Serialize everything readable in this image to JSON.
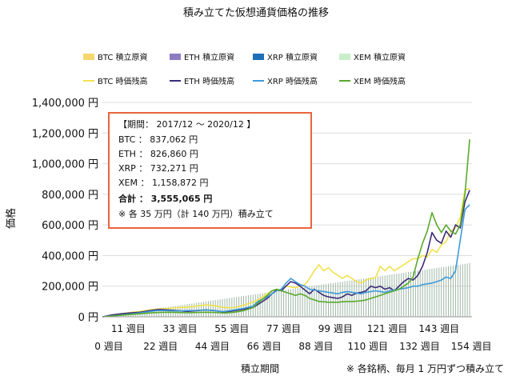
{
  "chart_data": {
    "type": "area",
    "title": "積み立てた仮想通貨価格の推移",
    "xlabel": "積立期間",
    "ylabel": "価格",
    "yunit": "円",
    "ylim": [
      0,
      1400000
    ],
    "yticks": [
      0,
      200000,
      400000,
      600000,
      800000,
      1000000,
      1200000,
      1400000
    ],
    "ytick_labels": [
      "0 円",
      "200,000 円",
      "400,000 円",
      "600,000 円",
      "800,000 円",
      "1,000,000 円",
      "1,200,000 円",
      "1,400,000 円"
    ],
    "xlim": [
      0,
      157
    ],
    "xtick_labels_row1": [
      {
        "x": 11,
        "label": "11 週目"
      },
      {
        "x": 33,
        "label": "33 週目"
      },
      {
        "x": 55,
        "label": "55 週目"
      },
      {
        "x": 77,
        "label": "77 週目"
      },
      {
        "x": 99,
        "label": "99 週目"
      },
      {
        "x": 121,
        "label": "121 週目"
      },
      {
        "x": 143,
        "label": "143 週目"
      }
    ],
    "xtick_labels_row2": [
      {
        "x": 0,
        "label": "0 週目"
      },
      {
        "x": 22,
        "label": "22 週目"
      },
      {
        "x": 44,
        "label": "44 週目"
      },
      {
        "x": 66,
        "label": "66 週目"
      },
      {
        "x": 88,
        "label": "88 週目"
      },
      {
        "x": 110,
        "label": "110 週目"
      },
      {
        "x": 132,
        "label": "132 週目"
      },
      {
        "x": 154,
        "label": "154 週目"
      }
    ],
    "legend_position": "top",
    "legend": [
      {
        "label": "BTC  積立原資",
        "kind": "bar",
        "color": "#F5D76E"
      },
      {
        "label": "ETH  積立原資",
        "kind": "bar",
        "color": "#8E7CC3"
      },
      {
        "label": "XRP  積立原資",
        "kind": "bar",
        "color": "#1F6FB8"
      },
      {
        "label": "XEM  積立原資",
        "kind": "bar",
        "color": "#C8EFC8"
      },
      {
        "label": "BTC  時価残高",
        "kind": "line",
        "color": "#F2E24C"
      },
      {
        "label": "ETH  時価残高",
        "kind": "line",
        "color": "#3C2C7A"
      },
      {
        "label": "XRP  時価残高",
        "kind": "line",
        "color": "#3D9AD9"
      },
      {
        "label": "XEM  時価残高",
        "kind": "line",
        "color": "#5AAA2E"
      }
    ],
    "principal": {
      "name": "積立原資",
      "color": "#9FB7A5",
      "weeks": [
        0,
        156
      ],
      "values": [
        2244,
        350000
      ]
    },
    "series": [
      {
        "key": "BTC",
        "color": "#F2E24C",
        "points": [
          [
            0,
            0
          ],
          [
            4,
            8000
          ],
          [
            8,
            20000
          ],
          [
            12,
            28000
          ],
          [
            16,
            35000
          ],
          [
            20,
            45000
          ],
          [
            24,
            52000
          ],
          [
            28,
            55000
          ],
          [
            32,
            60000
          ],
          [
            36,
            62000
          ],
          [
            40,
            70000
          ],
          [
            44,
            78000
          ],
          [
            48,
            72000
          ],
          [
            50,
            65000
          ],
          [
            52,
            60000
          ],
          [
            56,
            60000
          ],
          [
            60,
            75000
          ],
          [
            64,
            95000
          ],
          [
            66,
            110000
          ],
          [
            70,
            150000
          ],
          [
            72,
            170000
          ],
          [
            74,
            175000
          ],
          [
            76,
            180000
          ],
          [
            78,
            200000
          ],
          [
            80,
            195000
          ],
          [
            82,
            190000
          ],
          [
            84,
            200000
          ],
          [
            86,
            210000
          ],
          [
            88,
            250000
          ],
          [
            90,
            300000
          ],
          [
            92,
            340000
          ],
          [
            94,
            300000
          ],
          [
            96,
            320000
          ],
          [
            98,
            290000
          ],
          [
            100,
            270000
          ],
          [
            102,
            250000
          ],
          [
            104,
            270000
          ],
          [
            106,
            250000
          ],
          [
            108,
            230000
          ],
          [
            110,
            220000
          ],
          [
            112,
            240000
          ],
          [
            114,
            250000
          ],
          [
            116,
            255000
          ],
          [
            118,
            330000
          ],
          [
            120,
            300000
          ],
          [
            122,
            330000
          ],
          [
            124,
            300000
          ],
          [
            126,
            320000
          ],
          [
            128,
            340000
          ],
          [
            130,
            360000
          ],
          [
            132,
            380000
          ],
          [
            134,
            380000
          ],
          [
            136,
            400000
          ],
          [
            138,
            390000
          ],
          [
            140,
            440000
          ],
          [
            142,
            420000
          ],
          [
            144,
            470000
          ],
          [
            146,
            490000
          ],
          [
            148,
            560000
          ],
          [
            150,
            580000
          ],
          [
            152,
            650000
          ],
          [
            154,
            830000
          ],
          [
            156,
            837062
          ]
        ]
      },
      {
        "key": "ETH",
        "color": "#3C2C7A",
        "points": [
          [
            0,
            0
          ],
          [
            4,
            12000
          ],
          [
            8,
            20000
          ],
          [
            12,
            25000
          ],
          [
            16,
            30000
          ],
          [
            20,
            40000
          ],
          [
            24,
            48000
          ],
          [
            28,
            45000
          ],
          [
            32,
            40000
          ],
          [
            36,
            35000
          ],
          [
            40,
            40000
          ],
          [
            44,
            45000
          ],
          [
            48,
            40000
          ],
          [
            50,
            35000
          ],
          [
            52,
            30000
          ],
          [
            56,
            40000
          ],
          [
            60,
            50000
          ],
          [
            64,
            60000
          ],
          [
            66,
            80000
          ],
          [
            70,
            120000
          ],
          [
            72,
            150000
          ],
          [
            74,
            175000
          ],
          [
            76,
            170000
          ],
          [
            78,
            200000
          ],
          [
            80,
            230000
          ],
          [
            82,
            220000
          ],
          [
            84,
            200000
          ],
          [
            86,
            175000
          ],
          [
            88,
            150000
          ],
          [
            90,
            180000
          ],
          [
            92,
            160000
          ],
          [
            94,
            140000
          ],
          [
            96,
            130000
          ],
          [
            98,
            125000
          ],
          [
            100,
            120000
          ],
          [
            102,
            130000
          ],
          [
            104,
            150000
          ],
          [
            106,
            140000
          ],
          [
            108,
            155000
          ],
          [
            110,
            160000
          ],
          [
            112,
            170000
          ],
          [
            114,
            200000
          ],
          [
            116,
            190000
          ],
          [
            118,
            200000
          ],
          [
            120,
            180000
          ],
          [
            122,
            190000
          ],
          [
            124,
            170000
          ],
          [
            126,
            200000
          ],
          [
            128,
            230000
          ],
          [
            130,
            250000
          ],
          [
            132,
            240000
          ],
          [
            134,
            270000
          ],
          [
            136,
            330000
          ],
          [
            138,
            420000
          ],
          [
            140,
            550000
          ],
          [
            142,
            500000
          ],
          [
            144,
            480000
          ],
          [
            146,
            560000
          ],
          [
            148,
            520000
          ],
          [
            150,
            600000
          ],
          [
            152,
            580000
          ],
          [
            154,
            750000
          ],
          [
            156,
            826860
          ]
        ]
      },
      {
        "key": "XRP",
        "color": "#3D9AD9",
        "points": [
          [
            0,
            0
          ],
          [
            4,
            6000
          ],
          [
            8,
            12000
          ],
          [
            12,
            18000
          ],
          [
            16,
            25000
          ],
          [
            20,
            35000
          ],
          [
            24,
            42000
          ],
          [
            28,
            40000
          ],
          [
            32,
            38000
          ],
          [
            36,
            40000
          ],
          [
            40,
            42000
          ],
          [
            44,
            45000
          ],
          [
            48,
            40000
          ],
          [
            50,
            35000
          ],
          [
            52,
            35000
          ],
          [
            56,
            45000
          ],
          [
            60,
            55000
          ],
          [
            64,
            70000
          ],
          [
            66,
            100000
          ],
          [
            70,
            130000
          ],
          [
            72,
            150000
          ],
          [
            74,
            170000
          ],
          [
            76,
            180000
          ],
          [
            78,
            220000
          ],
          [
            80,
            250000
          ],
          [
            82,
            230000
          ],
          [
            84,
            210000
          ],
          [
            86,
            200000
          ],
          [
            88,
            180000
          ],
          [
            90,
            175000
          ],
          [
            92,
            170000
          ],
          [
            94,
            165000
          ],
          [
            96,
            160000
          ],
          [
            98,
            155000
          ],
          [
            100,
            150000
          ],
          [
            102,
            160000
          ],
          [
            104,
            165000
          ],
          [
            106,
            160000
          ],
          [
            108,
            155000
          ],
          [
            110,
            150000
          ],
          [
            112,
            160000
          ],
          [
            114,
            165000
          ],
          [
            116,
            170000
          ],
          [
            118,
            165000
          ],
          [
            120,
            160000
          ],
          [
            122,
            170000
          ],
          [
            124,
            175000
          ],
          [
            126,
            180000
          ],
          [
            128,
            185000
          ],
          [
            130,
            190000
          ],
          [
            132,
            200000
          ],
          [
            134,
            200000
          ],
          [
            136,
            210000
          ],
          [
            138,
            215000
          ],
          [
            140,
            220000
          ],
          [
            142,
            230000
          ],
          [
            144,
            240000
          ],
          [
            146,
            260000
          ],
          [
            148,
            250000
          ],
          [
            150,
            300000
          ],
          [
            152,
            500000
          ],
          [
            154,
            700000
          ],
          [
            156,
            732271
          ]
        ]
      },
      {
        "key": "XEM",
        "color": "#5AAA2E",
        "points": [
          [
            0,
            0
          ],
          [
            4,
            5000
          ],
          [
            8,
            10000
          ],
          [
            12,
            15000
          ],
          [
            16,
            20000
          ],
          [
            20,
            25000
          ],
          [
            24,
            28000
          ],
          [
            28,
            30000
          ],
          [
            32,
            28000
          ],
          [
            36,
            26000
          ],
          [
            40,
            28000
          ],
          [
            44,
            30000
          ],
          [
            48,
            28000
          ],
          [
            50,
            26000
          ],
          [
            52,
            25000
          ],
          [
            56,
            30000
          ],
          [
            60,
            40000
          ],
          [
            64,
            60000
          ],
          [
            66,
            90000
          ],
          [
            70,
            140000
          ],
          [
            72,
            170000
          ],
          [
            74,
            180000
          ],
          [
            76,
            170000
          ],
          [
            78,
            160000
          ],
          [
            80,
            150000
          ],
          [
            82,
            140000
          ],
          [
            84,
            150000
          ],
          [
            86,
            140000
          ],
          [
            88,
            120000
          ],
          [
            90,
            110000
          ],
          [
            92,
            100000
          ],
          [
            94,
            98000
          ],
          [
            96,
            95000
          ],
          [
            98,
            95000
          ],
          [
            100,
            95000
          ],
          [
            102,
            98000
          ],
          [
            104,
            100000
          ],
          [
            106,
            100000
          ],
          [
            108,
            102000
          ],
          [
            110,
            105000
          ],
          [
            112,
            110000
          ],
          [
            114,
            120000
          ],
          [
            116,
            130000
          ],
          [
            118,
            140000
          ],
          [
            120,
            150000
          ],
          [
            122,
            160000
          ],
          [
            124,
            170000
          ],
          [
            126,
            180000
          ],
          [
            128,
            200000
          ],
          [
            130,
            220000
          ],
          [
            132,
            260000
          ],
          [
            134,
            380000
          ],
          [
            136,
            480000
          ],
          [
            138,
            560000
          ],
          [
            140,
            680000
          ],
          [
            142,
            600000
          ],
          [
            144,
            550000
          ],
          [
            146,
            600000
          ],
          [
            148,
            560000
          ],
          [
            150,
            540000
          ],
          [
            152,
            600000
          ],
          [
            154,
            800000
          ],
          [
            156,
            1158872
          ]
        ]
      }
    ],
    "annotation": {
      "period": "【期間： 2017/12 ～ 2020/12 】",
      "lines": [
        "BTC ： 837,062 円",
        "ETH ： 826,860 円",
        "XRP ： 732,271 円",
        "XEM ： 1,158,872 円"
      ],
      "total": "合計 ： 3,555,065 円",
      "note": "※ 各 35 万円（計 140 万円）積み立て",
      "border_color": "#E8643C"
    },
    "footnote": "※ 各銘柄、毎月 1 万円ずつ積み立て"
  }
}
